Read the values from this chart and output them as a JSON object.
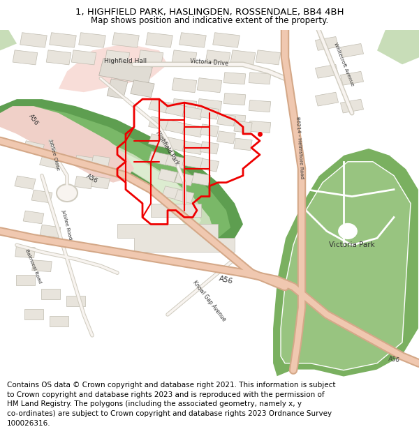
{
  "title_line1": "1, HIGHFIELD PARK, HASLINGDEN, ROSSENDALE, BB4 4BH",
  "title_line2": "Map shows position and indicative extent of the property.",
  "footer_text": "Contains OS data © Crown copyright and database right 2021. This information is subject to Crown copyright and database rights 2023 and is reproduced with the permission of HM Land Registry. The polygons (including the associated geometry, namely x, y co-ordinates) are subject to Crown copyright and database rights 2023 Ordnance Survey 100026316.",
  "title_fontsize": 9.5,
  "subtitle_fontsize": 8.5,
  "footer_fontsize": 7.5,
  "map_bg": "#f8f7f5",
  "green_dark": "#5e9e50",
  "green_mid": "#7ab868",
  "green_light": "#a8cc98",
  "green_lighter": "#c8ddb8",
  "green_park": "#7ab060",
  "green_park2": "#98c480",
  "road_salmon": "#f0c8b0",
  "road_border": "#d4a888",
  "road_minor": "#f8f4f0",
  "road_minor_border": "#d0ccc0",
  "building_fill": "#e8e4dc",
  "building_edge": "#c0bcb0",
  "hall_pink": "#f8ddd8",
  "property_red": "#ee0000",
  "white": "#ffffff"
}
